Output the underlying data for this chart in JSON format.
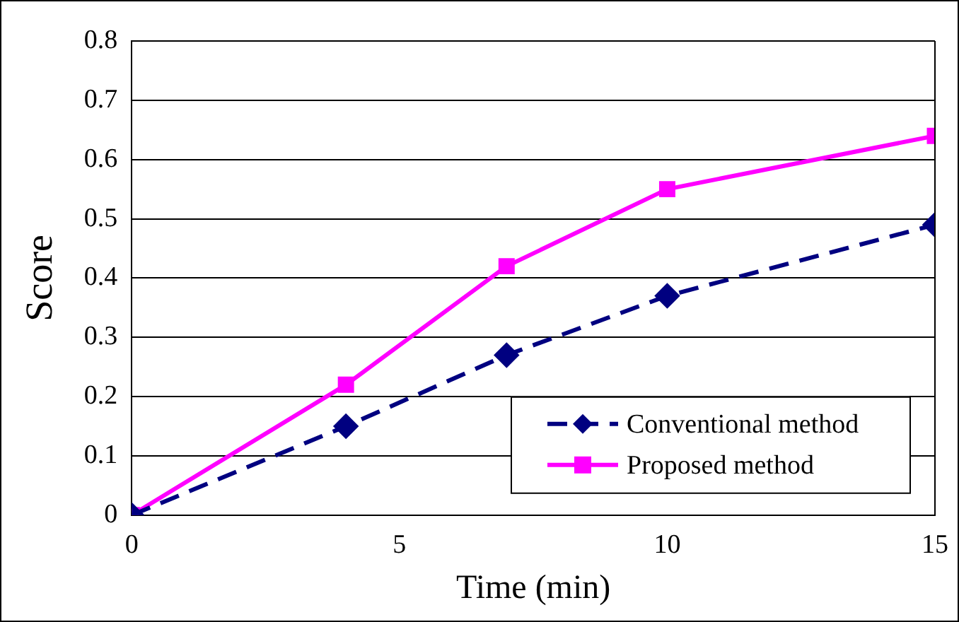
{
  "chart_data": {
    "type": "line",
    "xlabel": "Time (min)",
    "ylabel": "Score",
    "x": [
      0,
      4,
      7,
      10,
      15
    ],
    "series": [
      {
        "name": "Conventional method",
        "color": "#000080",
        "values": [
          0,
          0.15,
          0.27,
          0.37,
          0.49
        ],
        "marker": "diamond",
        "line_style": "dashed"
      },
      {
        "name": "Proposed method",
        "color": "#ff00ff",
        "values": [
          0,
          0.22,
          0.42,
          0.55,
          0.64
        ],
        "marker": "square",
        "line_style": "solid"
      }
    ],
    "xlim": [
      0,
      15
    ],
    "xticks": [
      0,
      5,
      10,
      15
    ],
    "ylim": [
      0,
      0.8
    ],
    "yticks": [
      0,
      0.1,
      0.2,
      0.3,
      0.4,
      0.5,
      0.6,
      0.7,
      0.8
    ],
    "grid": "y",
    "legend": "bottom right"
  }
}
